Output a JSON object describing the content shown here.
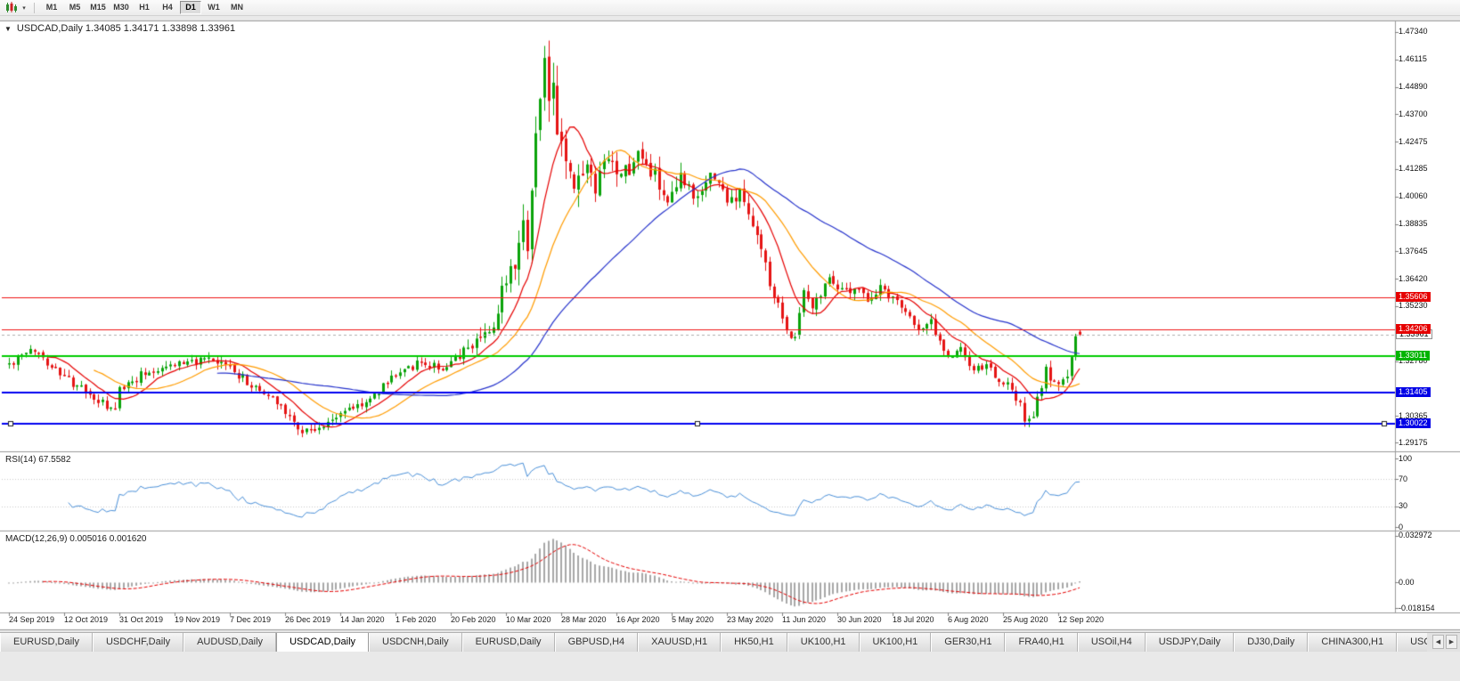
{
  "toolbar": {
    "timeframes": [
      "M1",
      "M5",
      "M15",
      "M30",
      "H1",
      "H4",
      "D1",
      "W1",
      "MN"
    ],
    "active_timeframe": "D1"
  },
  "icons": {
    "chart_dropdown": "▼",
    "toolbar_caret": "▾",
    "tab_scroll_left": "◀",
    "tab_scroll_right": "▶"
  },
  "chart": {
    "title": "USDCAD,Daily 1.34085 1.34171 1.33898 1.33961",
    "symbol": "USDCAD",
    "period": "Daily",
    "open": "1.34085",
    "high": "1.34171",
    "low": "1.33898",
    "close": "1.33961"
  },
  "price_axis": {
    "labels": [
      {
        "text": "1.47340",
        "value": 1.4734
      },
      {
        "text": "1.46115",
        "value": 1.46115
      },
      {
        "text": "1.44890",
        "value": 1.4489
      },
      {
        "text": "1.43700",
        "value": 1.437
      },
      {
        "text": "1.42475",
        "value": 1.42475
      },
      {
        "text": "1.41285",
        "value": 1.41285
      },
      {
        "text": "1.40060",
        "value": 1.4006
      },
      {
        "text": "1.38835",
        "value": 1.38835
      },
      {
        "text": "1.37645",
        "value": 1.37645
      },
      {
        "text": "1.36420",
        "value": 1.3642
      },
      {
        "text": "1.35230",
        "value": 1.3523
      },
      {
        "text": "1.32780",
        "value": 1.3278
      },
      {
        "text": "1.30365",
        "value": 1.30365
      },
      {
        "text": "1.29175",
        "value": 1.29175
      }
    ],
    "badges": [
      {
        "text": "1.35606",
        "value": 1.35606,
        "kind": "line",
        "color": "#e60000"
      },
      {
        "text": "1.33961",
        "value": 1.33961,
        "kind": "current",
        "color": "#ffffff"
      },
      {
        "text": "1.34206",
        "value": 1.34206,
        "kind": "line",
        "color": "#e60000"
      },
      {
        "text": "1.33011",
        "value": 1.33011,
        "kind": "line",
        "color": "#00b400"
      },
      {
        "text": "1.31405",
        "value": 1.31405,
        "kind": "line",
        "color": "#0000e6"
      },
      {
        "text": "1.30022",
        "value": 1.30022,
        "kind": "line",
        "color": "#0000e6"
      }
    ]
  },
  "rsi": {
    "title": "RSI(14) 67.5582",
    "value_text": "67.5582",
    "axis_labels": [
      {
        "text": "100",
        "value": 100
      },
      {
        "text": "70",
        "value": 70
      },
      {
        "text": "30",
        "value": 30
      },
      {
        "text": "0",
        "value": 0
      }
    ],
    "level_lines": [
      70,
      30
    ]
  },
  "macd": {
    "title": "MACD(12,26,9) 0.005016 0.001620",
    "value_text": "0.005016",
    "signal_text": "0.001620",
    "axis_labels": [
      {
        "text": "0.032972",
        "value": 0.032972
      },
      {
        "text": "0.00",
        "value": 0
      },
      {
        "text": "-0.018154",
        "value": -0.018154
      }
    ]
  },
  "date_axis": {
    "labels": [
      "24 Sep 2019",
      "12 Oct 2019",
      "31 Oct 2019",
      "19 Nov 2019",
      "7 Dec 2019",
      "26 Dec 2019",
      "14 Jan 2020",
      "1 Feb 2020",
      "20 Feb 2020",
      "10 Mar 2020",
      "28 Mar 2020",
      "16 Apr 2020",
      "5 May 2020",
      "23 May 2020",
      "11 Jun 2020",
      "30 Jun 2020",
      "18 Jul 2020",
      "6 Aug 2020",
      "25 Aug 2020",
      "12 Sep 2020"
    ]
  },
  "tabs": {
    "active_index": 3,
    "items": [
      "EURUSD,Daily",
      "USDCHF,Daily",
      "AUDUSD,Daily",
      "USDCAD,Daily",
      "USDCNH,Daily",
      "EURUSD,Daily",
      "GBPUSD,H4",
      "XAUUSD,H1",
      "HK50,H1",
      "UK100,H1",
      "UK100,H1",
      "GER30,H1",
      "FRA40,H1",
      "USOil,H4",
      "USDJPY,Daily",
      "DJ30,Daily",
      "CHINA300,H1",
      "USOil,H4"
    ]
  },
  "chart_data": {
    "type": "candlestick",
    "symbol": "USDCAD",
    "timeframe": "Daily",
    "candles": 253,
    "seed": 42,
    "price_range": {
      "top": 1.478,
      "bottom": 1.288
    },
    "macd_range": {
      "top": 0.0335,
      "bottom": -0.0185
    },
    "anchors": [
      [
        0,
        1.3265
      ],
      [
        0.024,
        1.333
      ],
      [
        0.052,
        1.3205
      ],
      [
        0.099,
        1.305
      ],
      [
        0.103,
        1.3155
      ],
      [
        0.127,
        1.323
      ],
      [
        0.155,
        1.327
      ],
      [
        0.183,
        1.328
      ],
      [
        0.206,
        1.3255
      ],
      [
        0.226,
        1.317
      ],
      [
        0.254,
        1.309
      ],
      [
        0.27,
        1.2975
      ],
      [
        0.294,
        1.2985
      ],
      [
        0.31,
        1.3055
      ],
      [
        0.337,
        1.3105
      ],
      [
        0.361,
        1.323
      ],
      [
        0.385,
        1.327
      ],
      [
        0.409,
        1.3245
      ],
      [
        0.413,
        1.326
      ],
      [
        0.437,
        1.338
      ],
      [
        0.444,
        1.343
      ],
      [
        0.452,
        1.339
      ],
      [
        0.464,
        1.366
      ],
      [
        0.472,
        1.373
      ],
      [
        0.48,
        1.393
      ],
      [
        0.484,
        1.381
      ],
      [
        0.488,
        1.403
      ],
      [
        0.492,
        1.427
      ],
      [
        0.496,
        1.45
      ],
      [
        0.5,
        1.462
      ],
      [
        0.504,
        1.438
      ],
      [
        0.508,
        1.445
      ],
      [
        0.512,
        1.432
      ],
      [
        0.52,
        1.418
      ],
      [
        0.528,
        1.401
      ],
      [
        0.532,
        1.409
      ],
      [
        0.54,
        1.413
      ],
      [
        0.548,
        1.4
      ],
      [
        0.556,
        1.416
      ],
      [
        0.571,
        1.408
      ],
      [
        0.587,
        1.419
      ],
      [
        0.603,
        1.41
      ],
      [
        0.615,
        1.395
      ],
      [
        0.627,
        1.408
      ],
      [
        0.643,
        1.398
      ],
      [
        0.655,
        1.412
      ],
      [
        0.671,
        1.399
      ],
      [
        0.683,
        1.401
      ],
      [
        0.694,
        1.39
      ],
      [
        0.702,
        1.378
      ],
      [
        0.71,
        1.362
      ],
      [
        0.718,
        1.352
      ],
      [
        0.726,
        1.342
      ],
      [
        0.734,
        1.339
      ],
      [
        0.742,
        1.36
      ],
      [
        0.75,
        1.353
      ],
      [
        0.758,
        1.358
      ],
      [
        0.766,
        1.367
      ],
      [
        0.778,
        1.358
      ],
      [
        0.79,
        1.361
      ],
      [
        0.802,
        1.355
      ],
      [
        0.813,
        1.36
      ],
      [
        0.825,
        1.356
      ],
      [
        0.837,
        1.351
      ],
      [
        0.849,
        1.341
      ],
      [
        0.861,
        1.345
      ],
      [
        0.877,
        1.329
      ],
      [
        0.889,
        1.333
      ],
      [
        0.901,
        1.323
      ],
      [
        0.913,
        1.326
      ],
      [
        0.925,
        1.318
      ],
      [
        0.929,
        1.319
      ],
      [
        0.944,
        1.309
      ],
      [
        0.948,
        1.3005
      ],
      [
        0.956,
        1.303
      ],
      [
        0.968,
        1.324
      ],
      [
        0.98,
        1.316
      ],
      [
        0.988,
        1.322
      ],
      [
        0.992,
        1.33
      ],
      [
        0.996,
        1.339
      ],
      [
        1,
        1.3396
      ]
    ],
    "volatility": [
      [
        0,
        0.9
      ],
      [
        0.4,
        0.8
      ],
      [
        0.46,
        1.9
      ],
      [
        0.5,
        3.0
      ],
      [
        0.56,
        2.0
      ],
      [
        0.62,
        1.5
      ],
      [
        0.7,
        1.3
      ],
      [
        0.78,
        0.9
      ],
      [
        0.86,
        0.8
      ],
      [
        0.95,
        0.9
      ],
      [
        1,
        1.0
      ]
    ],
    "last_candle": {
      "o": 1.34085,
      "h": 1.34171,
      "l": 1.33898,
      "c": 1.33961
    },
    "key_highs": [
      {
        "frac": 0.5,
        "high": 1.4668
      }
    ],
    "key_lows": [
      {
        "frac": 0.27,
        "low": 1.2952
      },
      {
        "frac": 0.948,
        "low": 1.2995
      }
    ],
    "current_price": 1.33961,
    "moving_averages": [
      {
        "period": 10,
        "color": "#e60000"
      },
      {
        "period": 21,
        "color": "#ff9c00"
      },
      {
        "period": 50,
        "color": "#2633cc"
      }
    ],
    "hlines": [
      {
        "value": 1.35606,
        "color": "#f01414",
        "width": 1,
        "selected": false
      },
      {
        "value": 1.34206,
        "color": "#f01414",
        "width": 1,
        "selected": false
      },
      {
        "value": 1.33011,
        "color": "#00cc00",
        "width": 2,
        "selected": false
      },
      {
        "value": 1.31405,
        "color": "#0000f0",
        "width": 2,
        "selected": false
      },
      {
        "value": 1.30022,
        "color": "#0000f0",
        "width": 2,
        "selected": true
      }
    ],
    "colors": {
      "up": "#0aa30a",
      "down": "#e51414",
      "rsi": "#4a90d9",
      "macd_hist": "#a8a8a8",
      "macd_signal": "#e60000",
      "grid_dotted": "#c8c8c8",
      "current_line": "#b0b0b0"
    },
    "indicators": {
      "rsi": {
        "period": 14,
        "last": 67.5582
      },
      "macd": {
        "fast": 12,
        "slow": 26,
        "signal": 9,
        "last": 0.005016,
        "last_signal": 0.00162
      }
    }
  }
}
